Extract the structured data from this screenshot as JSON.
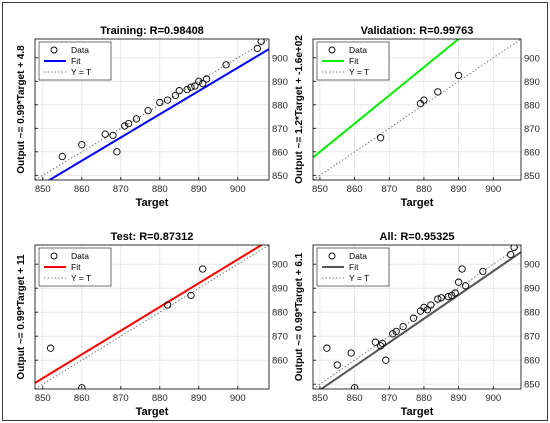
{
  "chart_data": [
    {
      "type": "scatter",
      "title": "Training: R=0.98408",
      "xlabel": "Target",
      "ylabel": "Output ~= 0.99*Target + 4.8",
      "xlim": [
        848,
        908
      ],
      "ylim": [
        848,
        908
      ],
      "xticks": [
        850,
        860,
        870,
        880,
        890,
        900
      ],
      "yticks": [
        850,
        860,
        870,
        880,
        890,
        900
      ],
      "fit_color": "#0000ff",
      "fit": {
        "slope": 0.99,
        "intercept": 4.8
      },
      "legend": {
        "placement": "top-left",
        "entries": [
          "Data",
          "Fit",
          "Y = T"
        ]
      },
      "points": [
        {
          "x": 855,
          "y": 858
        },
        {
          "x": 860,
          "y": 863
        },
        {
          "x": 866,
          "y": 867.5
        },
        {
          "x": 868,
          "y": 867
        },
        {
          "x": 869,
          "y": 860
        },
        {
          "x": 871,
          "y": 871
        },
        {
          "x": 872,
          "y": 872
        },
        {
          "x": 874,
          "y": 874
        },
        {
          "x": 877,
          "y": 877.5
        },
        {
          "x": 880,
          "y": 881
        },
        {
          "x": 882,
          "y": 882
        },
        {
          "x": 884,
          "y": 884
        },
        {
          "x": 885,
          "y": 886
        },
        {
          "x": 887,
          "y": 886.5
        },
        {
          "x": 888,
          "y": 887.5
        },
        {
          "x": 889,
          "y": 888
        },
        {
          "x": 890,
          "y": 890
        },
        {
          "x": 891,
          "y": 889
        },
        {
          "x": 892,
          "y": 891
        },
        {
          "x": 897,
          "y": 897
        },
        {
          "x": 905,
          "y": 904
        },
        {
          "x": 906,
          "y": 907
        }
      ]
    },
    {
      "type": "scatter",
      "title": "Validation: R=0.99763",
      "xlabel": "Target",
      "ylabel": "Output ~= 1.2*Target + -1.6e+02",
      "xlim": [
        848,
        908
      ],
      "ylim": [
        848,
        908
      ],
      "xticks": [
        850,
        860,
        870,
        880,
        890,
        900
      ],
      "yticks": [
        850,
        860,
        870,
        880,
        890,
        900
      ],
      "fit_color": "#00ee00",
      "fit": {
        "slope": 1.2,
        "intercept": -160
      },
      "legend": {
        "placement": "top-left",
        "entries": [
          "Data",
          "Fit",
          "Y = T"
        ]
      },
      "points": [
        {
          "x": 867.5,
          "y": 866
        },
        {
          "x": 879,
          "y": 880.5
        },
        {
          "x": 880,
          "y": 882
        },
        {
          "x": 884,
          "y": 885.5
        },
        {
          "x": 890,
          "y": 892.5
        }
      ]
    },
    {
      "type": "scatter",
      "title": "Test: R=0.87312",
      "xlabel": "Target",
      "ylabel": "Output ~= 0.99*Target + 11",
      "xlim": [
        848,
        908
      ],
      "ylim": [
        848,
        908
      ],
      "xticks": [
        850,
        860,
        870,
        880,
        890,
        900
      ],
      "yticks": [
        860,
        870,
        880,
        890,
        900
      ],
      "fit_color": "#ff0000",
      "fit": {
        "slope": 0.99,
        "intercept": 11
      },
      "legend": {
        "placement": "top-left",
        "entries": [
          "Data",
          "Fit",
          "Y = T"
        ]
      },
      "points": [
        {
          "x": 852,
          "y": 865
        },
        {
          "x": 860,
          "y": 848.5
        },
        {
          "x": 882,
          "y": 883
        },
        {
          "x": 888,
          "y": 887
        },
        {
          "x": 891,
          "y": 898
        }
      ]
    },
    {
      "type": "scatter",
      "title": "All: R=0.95325",
      "xlabel": "Target",
      "ylabel": "Output ~= 0.99*Target + 6.1",
      "xlim": [
        848,
        908
      ],
      "ylim": [
        848,
        908
      ],
      "xticks": [
        850,
        860,
        870,
        880,
        890,
        900
      ],
      "yticks": [
        850,
        860,
        870,
        880,
        890,
        900
      ],
      "fit_color": "#555555",
      "fit": {
        "slope": 0.99,
        "intercept": 6.1
      },
      "legend": {
        "placement": "top-left",
        "entries": [
          "Data",
          "Fit",
          "Y = T"
        ]
      },
      "points": [
        {
          "x": 852,
          "y": 865
        },
        {
          "x": 855,
          "y": 858
        },
        {
          "x": 859,
          "y": 863
        },
        {
          "x": 860,
          "y": 848.5
        },
        {
          "x": 866,
          "y": 867.5
        },
        {
          "x": 867.5,
          "y": 866
        },
        {
          "x": 868,
          "y": 867
        },
        {
          "x": 869,
          "y": 860
        },
        {
          "x": 871,
          "y": 871
        },
        {
          "x": 872,
          "y": 872
        },
        {
          "x": 874,
          "y": 874
        },
        {
          "x": 877,
          "y": 877.5
        },
        {
          "x": 879,
          "y": 880.5
        },
        {
          "x": 880,
          "y": 882
        },
        {
          "x": 881,
          "y": 881
        },
        {
          "x": 882,
          "y": 883
        },
        {
          "x": 884,
          "y": 885.5
        },
        {
          "x": 885,
          "y": 886
        },
        {
          "x": 887,
          "y": 886.5
        },
        {
          "x": 888,
          "y": 887
        },
        {
          "x": 889,
          "y": 888
        },
        {
          "x": 890,
          "y": 892.5
        },
        {
          "x": 891,
          "y": 898
        },
        {
          "x": 892,
          "y": 891
        },
        {
          "x": 897,
          "y": 897
        },
        {
          "x": 905,
          "y": 904
        },
        {
          "x": 906,
          "y": 907
        }
      ]
    }
  ]
}
